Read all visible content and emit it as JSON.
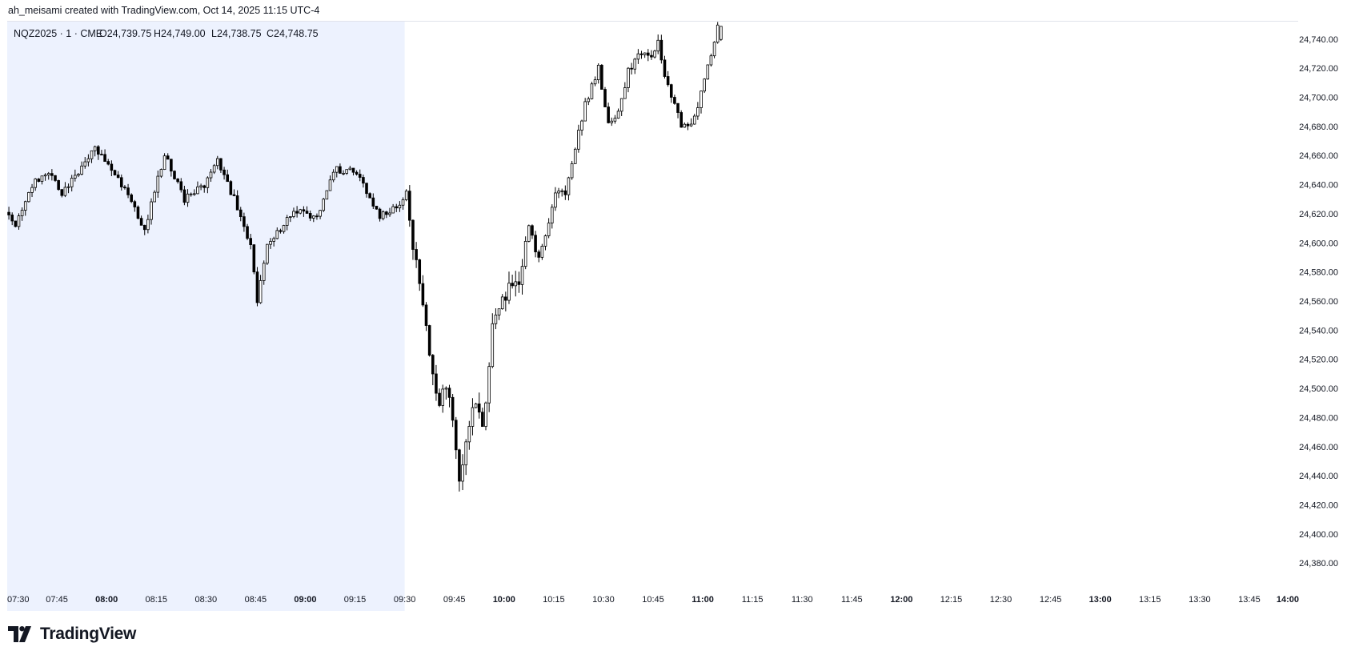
{
  "header": {
    "attribution": "ah_meisami created with TradingView.com, Oct 14, 2025 11:15 UTC-4"
  },
  "legend": {
    "symbol": "NQZ2025 · 1 · CME",
    "open": "O24,739.75",
    "high": "H24,749.00",
    "low": "L24,738.75",
    "close": "C24,748.75"
  },
  "footer": {
    "brand": "TradingView"
  },
  "colors": {
    "candle": "#000000",
    "session_shade": "#edf2fe",
    "axis_text": "#131722",
    "border": "#e0e3eb"
  },
  "chart_data": {
    "type": "candlestick",
    "interval": "1 minute",
    "x_axis": {
      "start": "07:30",
      "end": "14:00",
      "ticks": [
        "07:30",
        "07:45",
        "08:00",
        "08:15",
        "08:30",
        "08:45",
        "09:00",
        "09:15",
        "09:30",
        "09:45",
        "10:00",
        "10:15",
        "10:30",
        "10:45",
        "11:00",
        "11:15",
        "11:30",
        "11:45",
        "12:00",
        "12:15",
        "12:30",
        "12:45",
        "13:00",
        "13:15",
        "13:30",
        "13:45",
        "14:00"
      ],
      "bold_ticks": [
        "08:00",
        "09:00",
        "10:00",
        "11:00",
        "12:00",
        "13:00",
        "14:00"
      ]
    },
    "y_axis": {
      "min": 24368,
      "max": 24752,
      "ticks": [
        "24,380.00",
        "24,400.00",
        "24,420.00",
        "24,440.00",
        "24,460.00",
        "24,480.00",
        "24,500.00",
        "24,520.00",
        "24,540.00",
        "24,560.00",
        "24,580.00",
        "24,600.00",
        "24,620.00",
        "24,640.00",
        "24,660.00",
        "24,680.00",
        "24,700.00",
        "24,720.00",
        "24,740.00"
      ]
    },
    "shaded_session": {
      "start": "07:30",
      "end": "09:30"
    },
    "series": {
      "start_time": "07:30",
      "end_time": "11:15",
      "anchors": [
        [
          "07:30",
          24621
        ],
        [
          "07:33",
          24612
        ],
        [
          "07:38",
          24640
        ],
        [
          "07:43",
          24648
        ],
        [
          "07:47",
          24634
        ],
        [
          "07:52",
          24648
        ],
        [
          "07:57",
          24664
        ],
        [
          "08:02",
          24650
        ],
        [
          "08:08",
          24628
        ],
        [
          "08:12",
          24610
        ],
        [
          "08:18",
          24660
        ],
        [
          "08:24",
          24630
        ],
        [
          "08:30",
          24640
        ],
        [
          "08:34",
          24658
        ],
        [
          "08:39",
          24630
        ],
        [
          "08:44",
          24598
        ],
        [
          "08:46",
          24560
        ],
        [
          "08:49",
          24598
        ],
        [
          "08:53",
          24610
        ],
        [
          "08:57",
          24622
        ],
        [
          "09:04",
          24618
        ],
        [
          "09:09",
          24650
        ],
        [
          "09:14",
          24650
        ],
        [
          "09:18",
          24640
        ],
        [
          "09:23",
          24618
        ],
        [
          "09:28",
          24625
        ],
        [
          "09:31",
          24635
        ],
        [
          "09:33",
          24600
        ],
        [
          "09:36",
          24560
        ],
        [
          "09:39",
          24510
        ],
        [
          "09:41",
          24485
        ],
        [
          "09:43",
          24505
        ],
        [
          "09:45",
          24475
        ],
        [
          "09:47",
          24440
        ],
        [
          "09:50",
          24475
        ],
        [
          "09:52",
          24490
        ],
        [
          "09:54",
          24470
        ],
        [
          "09:57",
          24540
        ],
        [
          "10:00",
          24560
        ],
        [
          "10:02",
          24570
        ],
        [
          "10:05",
          24575
        ],
        [
          "10:08",
          24612
        ],
        [
          "10:11",
          24588
        ],
        [
          "10:14",
          24615
        ],
        [
          "10:16",
          24635
        ],
        [
          "10:19",
          24635
        ],
        [
          "10:22",
          24665
        ],
        [
          "10:25",
          24695
        ],
        [
          "10:29",
          24720
        ],
        [
          "10:32",
          24682
        ],
        [
          "10:35",
          24690
        ],
        [
          "10:38",
          24718
        ],
        [
          "10:41",
          24728
        ],
        [
          "10:45",
          24730
        ],
        [
          "10:47",
          24738
        ],
        [
          "10:49",
          24712
        ],
        [
          "10:52",
          24695
        ],
        [
          "10:54",
          24680
        ],
        [
          "10:57",
          24682
        ],
        [
          "10:59",
          24695
        ],
        [
          "11:01",
          24712
        ],
        [
          "11:03",
          24728
        ],
        [
          "11:05",
          24749
        ]
      ],
      "last_bar": {
        "open": 24739.75,
        "high": 24749.0,
        "low": 24738.75,
        "close": 24748.75
      }
    }
  }
}
